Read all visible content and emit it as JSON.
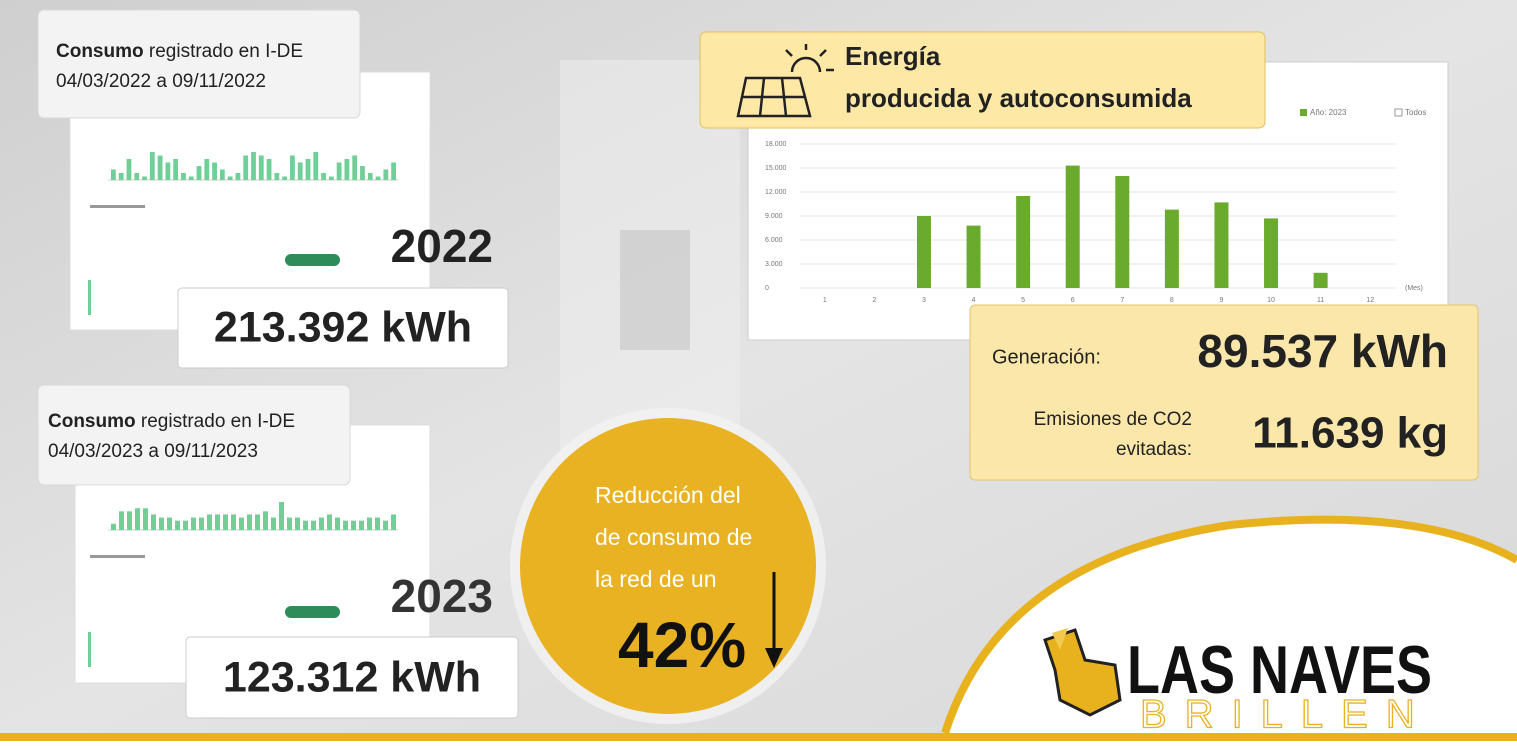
{
  "consumption_2022": {
    "label_bold": "Consumo",
    "label_rest": "registrado en I-DE",
    "period": "04/03/2022 a 09/11/2022",
    "year": "2022",
    "total": "213.392 kWh",
    "thumbnail_bars": [
      3,
      2,
      6,
      2,
      1,
      8,
      7,
      5,
      6,
      2,
      1,
      4,
      6,
      5,
      3,
      1,
      2,
      7,
      8,
      7,
      6,
      2,
      1,
      7,
      5,
      6,
      8,
      2,
      1,
      5,
      6,
      7,
      4,
      2,
      1,
      3,
      5
    ]
  },
  "consumption_2023": {
    "label_bold": "Consumo",
    "label_rest": "registrado en I-DE",
    "period": "04/03/2023 a 09/11/2023",
    "year": "2023",
    "total": "123.312 kWh",
    "thumbnail_bars": [
      2,
      6,
      6,
      7,
      7,
      5,
      4,
      4,
      3,
      3,
      4,
      4,
      5,
      5,
      5,
      5,
      4,
      5,
      5,
      6,
      4,
      9,
      4,
      4,
      3,
      3,
      4,
      5,
      4,
      3,
      3,
      3,
      4,
      4,
      3,
      5
    ]
  },
  "reduction": {
    "lines": [
      "Reducción del",
      "de consumo de",
      "la red de un"
    ],
    "percent": "42%"
  },
  "production": {
    "title_line1": "Energía",
    "title_line2": "producida y autoconsumida",
    "chart_data": {
      "type": "bar",
      "categories": [
        "1",
        "2",
        "3",
        "4",
        "5",
        "6",
        "7",
        "8",
        "9",
        "10",
        "11",
        "12"
      ],
      "values": [
        null,
        null,
        9000,
        7800,
        11500,
        15300,
        14000,
        9800,
        10700,
        8700,
        1900,
        null
      ],
      "color": "#6aab2e",
      "ylim": [
        0,
        18000
      ],
      "yticks": [
        0,
        {
          "value": 3000,
          "label": "3.000"
        },
        {
          "value": 6000,
          "label": "6.000"
        },
        {
          "value": 9000,
          "label": "9.000"
        },
        {
          "value": 12000,
          "label": "12.000"
        },
        {
          "value": 15000,
          "label": "15.000"
        },
        {
          "value": 18000,
          "label": "18.000"
        }
      ],
      "grid": true,
      "x_label": "(Mes)",
      "legend": [
        "Año: 2023",
        "Todos"
      ]
    }
  },
  "results": {
    "generation_label": "Generación:",
    "generation_value": "89.537 kWh",
    "co2_label_line1": "Emisiones de CO2",
    "co2_label_line2": "evitadas:",
    "co2_value": "11.639 kg"
  },
  "logo": {
    "name": "LAS NAVES",
    "subtitle": "BRILLEN"
  }
}
